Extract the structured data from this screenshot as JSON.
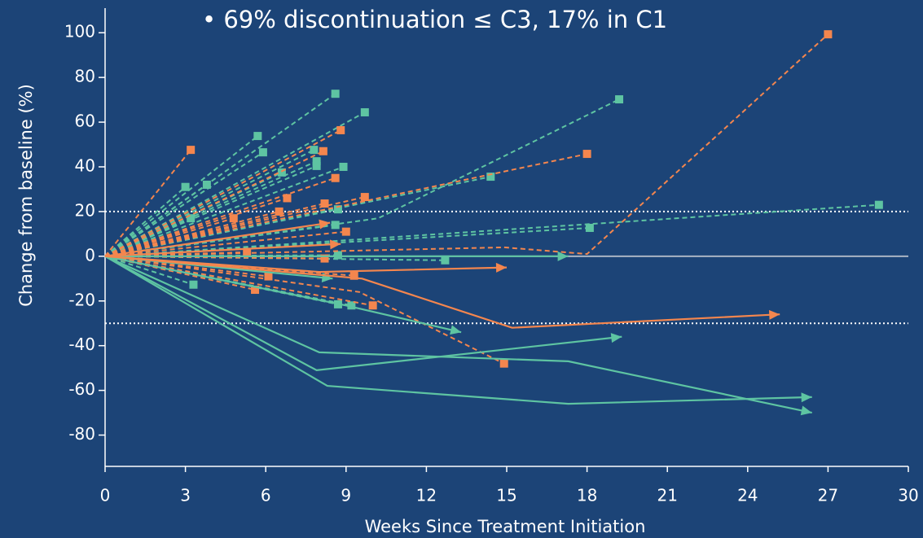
{
  "chart_data": {
    "type": "line",
    "annotation": "• 69% discontinuation ≤ C3, 17% in C1",
    "xlabel": "Weeks Since Treatment Initiation",
    "ylabel": "Change from baseline (%)",
    "xlim": [
      0,
      30
    ],
    "xticks": [
      0,
      3,
      6,
      9,
      12,
      15,
      18,
      21,
      24,
      27,
      30
    ],
    "ylim": [
      -94,
      111
    ],
    "yticks": [
      -80,
      -60,
      -40,
      -20,
      0,
      20,
      40,
      60,
      80,
      100
    ],
    "hlines": [
      {
        "value": 20,
        "style": "dotted",
        "color": "#ffffff"
      },
      {
        "value": -30,
        "style": "dotted",
        "color": "#ffffff"
      },
      {
        "value": 0,
        "style": "solid",
        "color": "#a9b4c4"
      }
    ],
    "series": [
      {
        "color": "#5ec4a2",
        "style": "dashed",
        "marker": "square",
        "x": [
          0,
          8.6
        ],
        "values": [
          0,
          72.7
        ]
      },
      {
        "color": "#5ec4a2",
        "style": "dashed",
        "marker": "square",
        "x": [
          0,
          9.7
        ],
        "values": [
          0,
          64.4
        ]
      },
      {
        "color": "#5ec4a2",
        "style": "dashed",
        "marker": "square",
        "x": [
          0,
          10.2,
          19.2
        ],
        "values": [
          0,
          17,
          70.2
        ]
      },
      {
        "color": "#5ec4a2",
        "style": "dashed",
        "marker": "square",
        "x": [
          0,
          14.4
        ],
        "values": [
          0,
          35.6
        ]
      },
      {
        "color": "#5ec4a2",
        "style": "dashed",
        "marker": "square",
        "x": [
          0,
          5.7
        ],
        "values": [
          0,
          53.8
        ]
      },
      {
        "color": "#5ec4a2",
        "style": "dashed",
        "marker": "square",
        "x": [
          0,
          5.9
        ],
        "values": [
          0,
          46.5
        ]
      },
      {
        "color": "#5ec4a2",
        "style": "dashed",
        "marker": "square",
        "x": [
          0,
          7.8
        ],
        "values": [
          0,
          47.6
        ]
      },
      {
        "color": "#5ec4a2",
        "style": "dashed",
        "marker": "square",
        "x": [
          0,
          7.9
        ],
        "values": [
          0,
          42.5
        ]
      },
      {
        "color": "#5ec4a2",
        "style": "dashed",
        "marker": "square",
        "x": [
          0,
          7.9
        ],
        "values": [
          0,
          40.4
        ]
      },
      {
        "color": "#5ec4a2",
        "style": "dashed",
        "marker": "square",
        "x": [
          0,
          8.9
        ],
        "values": [
          0,
          40
        ]
      },
      {
        "color": "#5ec4a2",
        "style": "dashed",
        "marker": "square",
        "x": [
          0,
          6.6
        ],
        "values": [
          0,
          37.5
        ]
      },
      {
        "color": "#5ec4a2",
        "style": "dashed",
        "marker": "square",
        "x": [
          0,
          3.0
        ],
        "values": [
          0,
          31
        ]
      },
      {
        "color": "#5ec4a2",
        "style": "dashed",
        "marker": "square",
        "x": [
          0,
          3.8
        ],
        "values": [
          0,
          32
        ]
      },
      {
        "color": "#5ec4a2",
        "style": "dashed",
        "marker": "square",
        "x": [
          0,
          3.2
        ],
        "values": [
          0,
          17
        ]
      },
      {
        "color": "#5ec4a2",
        "style": "dashed",
        "marker": "square",
        "x": [
          0,
          8.7
        ],
        "values": [
          0,
          21
        ]
      },
      {
        "color": "#5ec4a2",
        "style": "dashed",
        "marker": "square",
        "x": [
          0,
          8.6
        ],
        "values": [
          0,
          14
        ]
      },
      {
        "color": "#5ec4a2",
        "style": "dashed",
        "marker": "square",
        "x": [
          0,
          18.1
        ],
        "values": [
          0,
          12.7
        ]
      },
      {
        "color": "#5ec4a2",
        "style": "dashed",
        "marker": "square",
        "x": [
          0,
          28.9
        ],
        "values": [
          0,
          23
        ]
      },
      {
        "color": "#5ec4a2",
        "style": "dashed",
        "marker": "square",
        "x": [
          0,
          12.7
        ],
        "values": [
          0,
          -1.8
        ]
      },
      {
        "color": "#5ec4a2",
        "style": "dashed",
        "marker": "square",
        "x": [
          0,
          8.7
        ],
        "values": [
          0,
          0.5
        ]
      },
      {
        "color": "#5ec4a2",
        "style": "dashed",
        "marker": "square",
        "x": [
          0,
          3.3
        ],
        "values": [
          0,
          -12.7
        ]
      },
      {
        "color": "#5ec4a2",
        "style": "dashed",
        "marker": "square",
        "x": [
          0,
          8.7
        ],
        "values": [
          0,
          -21.5
        ]
      },
      {
        "color": "#5ec4a2",
        "style": "dashed",
        "marker": "square",
        "x": [
          0,
          9.2
        ],
        "values": [
          0,
          -22
        ]
      },
      {
        "color": "#f4864e",
        "style": "dashed",
        "marker": "square",
        "x": [
          0,
          3.2
        ],
        "values": [
          0,
          47.6
        ]
      },
      {
        "color": "#f4864e",
        "style": "dashed",
        "marker": "square",
        "x": [
          0,
          8.8
        ],
        "values": [
          0,
          56.4
        ]
      },
      {
        "color": "#f4864e",
        "style": "dashed",
        "marker": "square",
        "x": [
          0,
          8.15
        ],
        "values": [
          0,
          47
        ]
      },
      {
        "color": "#f4864e",
        "style": "dashed",
        "marker": "square",
        "x": [
          0,
          8.6
        ],
        "values": [
          0,
          35
        ]
      },
      {
        "color": "#f4864e",
        "style": "dashed",
        "marker": "square",
        "x": [
          0,
          6.8
        ],
        "values": [
          0,
          26
        ]
      },
      {
        "color": "#f4864e",
        "style": "dashed",
        "marker": "square",
        "x": [
          0,
          9.7
        ],
        "values": [
          0,
          26.5
        ]
      },
      {
        "color": "#f4864e",
        "style": "dashed",
        "marker": "square",
        "x": [
          0,
          6.5
        ],
        "values": [
          0,
          20
        ]
      },
      {
        "color": "#f4864e",
        "style": "dashed",
        "marker": "square",
        "x": [
          0,
          8.2
        ],
        "values": [
          0,
          23.6
        ]
      },
      {
        "color": "#f4864e",
        "style": "dashed",
        "marker": "square",
        "x": [
          0,
          18
        ],
        "values": [
          0,
          45.8
        ]
      },
      {
        "color": "#f4864e",
        "style": "dashed",
        "marker": "square",
        "x": [
          0,
          14.9,
          18,
          27
        ],
        "values": [
          0,
          4,
          1,
          99.3
        ]
      },
      {
        "color": "#f4864e",
        "style": "dashed",
        "marker": "square",
        "x": [
          0,
          4.8
        ],
        "values": [
          0,
          17
        ]
      },
      {
        "color": "#f4864e",
        "style": "dashed",
        "marker": "square",
        "x": [
          0,
          9
        ],
        "values": [
          0,
          11
        ]
      },
      {
        "color": "#f4864e",
        "style": "dashed",
        "marker": "square",
        "x": [
          0,
          5.3
        ],
        "values": [
          0,
          1.8
        ]
      },
      {
        "color": "#f4864e",
        "style": "dashed",
        "marker": "square",
        "x": [
          0,
          8.2
        ],
        "values": [
          0,
          -1
        ]
      },
      {
        "color": "#f4864e",
        "style": "dashed",
        "marker": "square",
        "x": [
          0,
          6.1
        ],
        "values": [
          0,
          -9
        ]
      },
      {
        "color": "#f4864e",
        "style": "dashed",
        "marker": "square",
        "x": [
          0,
          5.6
        ],
        "values": [
          0,
          -15
        ]
      },
      {
        "color": "#f4864e",
        "style": "dashed",
        "marker": "square",
        "x": [
          0,
          10
        ],
        "values": [
          0,
          -22
        ]
      },
      {
        "color": "#f4864e",
        "style": "dashed",
        "marker": "square",
        "x": [
          0,
          9.5,
          14.9
        ],
        "values": [
          0,
          -16,
          -48
        ]
      },
      {
        "color": "#f4864e",
        "style": "dashed",
        "marker": "square",
        "x": [
          0,
          9.3
        ],
        "values": [
          0,
          -8.7
        ]
      },
      {
        "color": "#5ec4a2",
        "style": "solid",
        "marker": "arrow",
        "x": [
          0,
          17.3
        ],
        "values": [
          0,
          0
        ]
      },
      {
        "color": "#5ec4a2",
        "style": "solid",
        "marker": "arrow",
        "x": [
          0,
          8.5
        ],
        "values": [
          0,
          -10
        ]
      },
      {
        "color": "#5ec4a2",
        "style": "solid",
        "marker": "arrow",
        "x": [
          0,
          9,
          13.3
        ],
        "values": [
          0,
          -22,
          -34
        ]
      },
      {
        "color": "#5ec4a2",
        "style": "solid",
        "marker": "arrow",
        "x": [
          0,
          8,
          17.3,
          26.4
        ],
        "values": [
          0,
          -43,
          -47,
          -70
        ]
      },
      {
        "color": "#5ec4a2",
        "style": "solid",
        "marker": "arrow",
        "x": [
          0,
          7.9,
          19.3
        ],
        "values": [
          0,
          -51,
          -36
        ]
      },
      {
        "color": "#5ec4a2",
        "style": "solid",
        "marker": "arrow",
        "x": [
          0,
          8.3,
          17.3,
          26.4
        ],
        "values": [
          0,
          -58,
          -66,
          -63
        ]
      },
      {
        "color": "#f4864e",
        "style": "solid",
        "marker": "arrow",
        "x": [
          0,
          8.4
        ],
        "values": [
          0,
          15
        ]
      },
      {
        "color": "#f4864e",
        "style": "solid",
        "marker": "arrow",
        "x": [
          0,
          8.8
        ],
        "values": [
          0,
          5.5
        ]
      },
      {
        "color": "#f4864e",
        "style": "solid",
        "marker": "arrow",
        "x": [
          0,
          8,
          15
        ],
        "values": [
          0,
          -7,
          -5
        ]
      },
      {
        "color": "#f4864e",
        "style": "solid",
        "marker": "arrow",
        "x": [
          0,
          9.6,
          15.2,
          25.2
        ],
        "values": [
          0,
          -10,
          -32,
          -26
        ]
      }
    ]
  }
}
